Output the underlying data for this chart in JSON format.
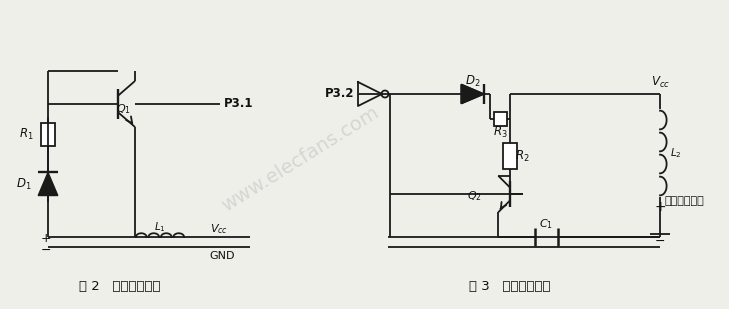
{
  "bg_color": "#efefea",
  "line_color": "#1a1a1a",
  "text_color": "#111111",
  "watermark_color": "#c0c0c0",
  "fig_caption_left": "图 2   信号发送电路",
  "fig_caption_right": "图 3   信号接收电路",
  "watermark": "www.elecfans.com"
}
